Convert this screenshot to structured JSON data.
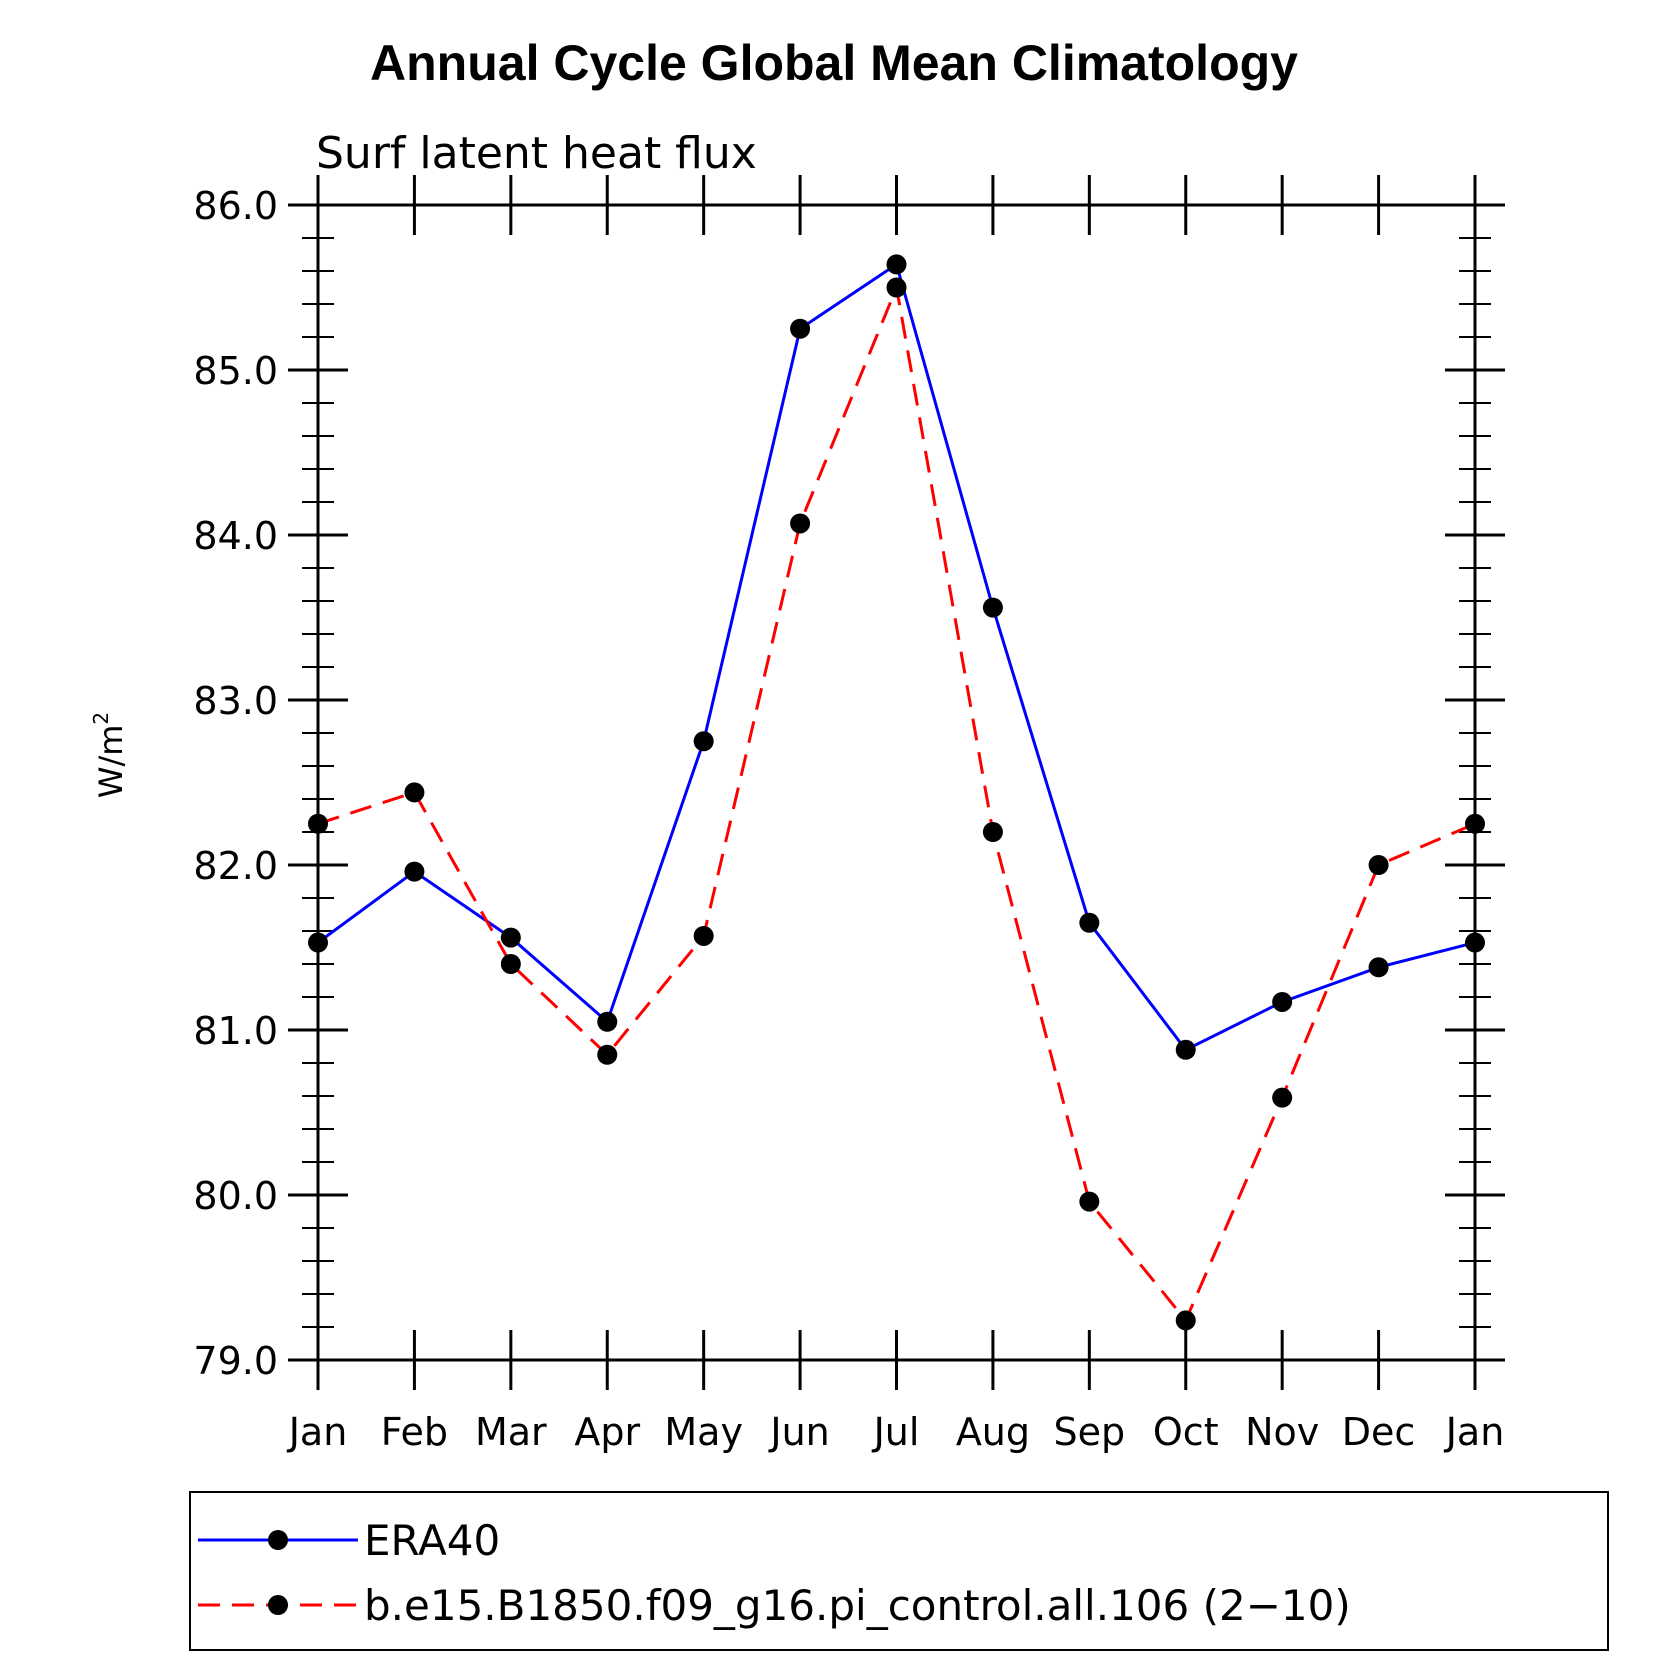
{
  "chart_data": {
    "type": "line",
    "title": "Annual Cycle Global Mean Climatology",
    "subtitle": "Surf latent heat flux",
    "xlabel": "",
    "ylabel": "W/m",
    "ylabel_superscript": "2",
    "categories": [
      "Jan",
      "Feb",
      "Mar",
      "Apr",
      "May",
      "Jun",
      "Jul",
      "Aug",
      "Sep",
      "Oct",
      "Nov",
      "Dec",
      "Jan"
    ],
    "ylim": [
      79.0,
      86.0
    ],
    "yticks": [
      79.0,
      80.0,
      81.0,
      82.0,
      83.0,
      84.0,
      85.0,
      86.0
    ],
    "ytick_labels": [
      "79.0",
      "80.0",
      "81.0",
      "82.0",
      "83.0",
      "84.0",
      "85.0",
      "86.0"
    ],
    "y_minor_step": 0.2,
    "grid": false,
    "legend_position": "bottom",
    "series": [
      {
        "name": "ERA40",
        "color": "#0000ff",
        "dash": "solid",
        "marker": "filled-circle",
        "values": [
          81.53,
          81.96,
          81.56,
          81.05,
          82.75,
          85.25,
          85.64,
          83.56,
          81.65,
          80.88,
          81.17,
          81.38,
          81.53
        ]
      },
      {
        "name": "b.e15.B1850.f09_g16.pi_control.all.106 (2−10)",
        "color": "#ff0000",
        "dash": "dashed",
        "marker": "filled-circle",
        "values": [
          82.25,
          82.44,
          81.4,
          80.85,
          81.57,
          84.07,
          85.5,
          82.2,
          79.96,
          79.24,
          80.59,
          82.0,
          82.25
        ]
      }
    ]
  }
}
